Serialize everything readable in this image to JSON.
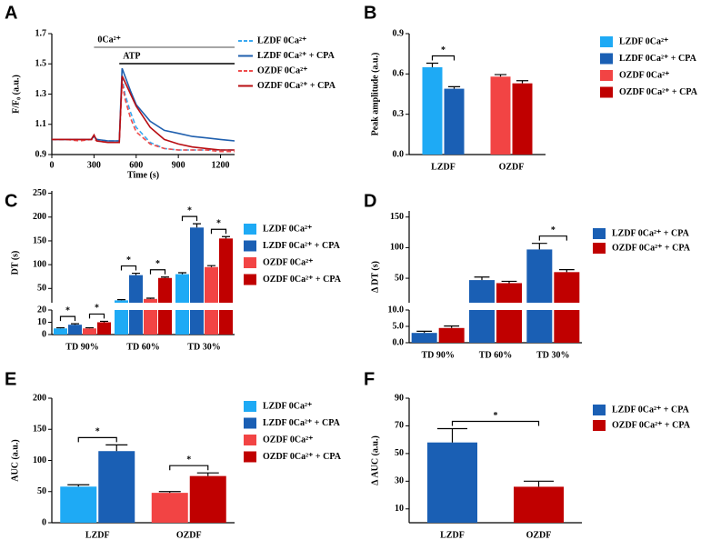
{
  "chart_data": [
    {
      "type": "line",
      "label": "A",
      "xlabel": "Time (s)",
      "ylabel": "F/F₀ (a.u.)",
      "x": [
        0,
        100,
        200,
        280,
        300,
        320,
        400,
        480,
        500,
        520,
        560,
        600,
        700,
        800,
        900,
        1000,
        1100,
        1200,
        1300
      ],
      "xlim": [
        0,
        1300
      ],
      "xticks": [
        0,
        300,
        600,
        900,
        1200
      ],
      "ylim": [
        0.9,
        1.7
      ],
      "yticks": [
        0.9,
        1.1,
        1.3,
        1.5,
        1.7
      ],
      "periods": [
        {
          "label": "0Ca²⁺",
          "start": 300,
          "end": 1300,
          "color": "#888888"
        },
        {
          "label": "ATP",
          "start": 480,
          "end": 1300,
          "color": "#000000"
        }
      ],
      "series": [
        {
          "name": "LZDF 0Ca²⁺",
          "color": "#3aa8f0",
          "style": "dashed",
          "values": [
            1.0,
            1.0,
            1.0,
            1.0,
            1.01,
            1.0,
            0.99,
            0.99,
            1.41,
            1.3,
            1.18,
            1.08,
            0.98,
            0.94,
            0.93,
            0.93,
            0.93,
            0.93,
            0.93
          ]
        },
        {
          "name": "LZDF 0Ca²⁺ + CPA",
          "color": "#1f5fae",
          "style": "solid",
          "values": [
            1.0,
            1.0,
            1.0,
            1.0,
            1.02,
            1.0,
            0.99,
            0.99,
            1.47,
            1.42,
            1.32,
            1.23,
            1.12,
            1.06,
            1.04,
            1.02,
            1.01,
            1.0,
            0.99
          ]
        },
        {
          "name": "OZDF 0Ca²⁺",
          "color": "#ee4b4b",
          "style": "dashed",
          "values": [
            1.0,
            1.0,
            0.99,
            1.0,
            1.0,
            0.99,
            0.98,
            0.98,
            1.38,
            1.27,
            1.14,
            1.05,
            0.97,
            0.94,
            0.93,
            0.93,
            0.93,
            0.92,
            0.92
          ]
        },
        {
          "name": "OZDF 0Ca²⁺ + CPA",
          "color": "#b80d12",
          "style": "solid",
          "values": [
            1.0,
            1.0,
            1.0,
            1.0,
            1.03,
            0.99,
            0.98,
            0.98,
            1.42,
            1.38,
            1.3,
            1.22,
            1.08,
            1.0,
            0.97,
            0.95,
            0.94,
            0.93,
            0.93
          ]
        }
      ]
    },
    {
      "type": "bar",
      "label": "B",
      "ylabel": "Peak amplitude (a.u.)",
      "categories": [
        "LZDF",
        "OZDF"
      ],
      "ylim": [
        0,
        0.9
      ],
      "yticks": [
        {
          "value": 0,
          "label": "0.0"
        },
        0.3,
        0.6,
        0.9
      ],
      "series": [
        {
          "name": "LZDF 0Ca²⁺",
          "color": "#1eaaf5",
          "values": [
            0.65,
            null
          ],
          "errors": [
            0.03,
            null
          ]
        },
        {
          "name": "LZDF 0Ca²⁺ + CPA",
          "color": "#1a5fb4",
          "values": [
            0.49,
            null
          ],
          "errors": [
            0.015,
            null
          ]
        },
        {
          "name": "OZDF 0Ca²⁺",
          "color": "#f24444",
          "values": [
            null,
            0.58
          ],
          "errors": [
            null,
            0.015
          ]
        },
        {
          "name": "OZDF 0Ca²⁺ + CPA",
          "color": "#c00000",
          "values": [
            null,
            0.53
          ],
          "errors": [
            null,
            0.02
          ]
        }
      ],
      "significance": [
        {
          "from": [
            0,
            0
          ],
          "to": [
            0,
            1
          ],
          "label": "*"
        }
      ]
    },
    {
      "type": "bar",
      "label": "C",
      "ylabel": "DT (s)",
      "categories": [
        "TD 90%",
        "TD 60%",
        "TD 30%"
      ],
      "ybreak": {
        "lower": [
          0,
          20
        ],
        "upper": [
          20,
          255
        ]
      },
      "yticks": [
        0,
        10,
        20,
        50,
        100,
        150,
        200,
        250
      ],
      "series": [
        {
          "name": "LZDF 0Ca²⁺",
          "color": "#1eaaf5",
          "values": [
            5,
            25,
            80
          ],
          "errors": [
            0.5,
            1.5,
            3
          ]
        },
        {
          "name": "LZDF 0Ca²⁺ + CPA",
          "color": "#1a5fb4",
          "values": [
            8,
            78,
            178
          ],
          "errors": [
            0.8,
            4,
            8
          ]
        },
        {
          "name": "OZDF 0Ca²⁺",
          "color": "#f24444",
          "values": [
            5,
            28,
            95
          ],
          "errors": [
            0.5,
            1.5,
            3
          ]
        },
        {
          "name": "OZDF 0Ca²⁺ + CPA",
          "color": "#c00000",
          "values": [
            10,
            72,
            155
          ],
          "errors": [
            0.8,
            2,
            4
          ]
        }
      ],
      "significance": [
        {
          "from": [
            0,
            0
          ],
          "to": [
            0,
            1
          ],
          "label": "*"
        },
        {
          "from": [
            0,
            2
          ],
          "to": [
            0,
            3
          ],
          "label": "*"
        },
        {
          "from": [
            1,
            0
          ],
          "to": [
            1,
            1
          ],
          "label": "*"
        },
        {
          "from": [
            1,
            2
          ],
          "to": [
            1,
            3
          ],
          "label": "*"
        },
        {
          "from": [
            2,
            0
          ],
          "to": [
            2,
            1
          ],
          "label": "*"
        },
        {
          "from": [
            2,
            2
          ],
          "to": [
            2,
            3
          ],
          "label": "*"
        }
      ]
    },
    {
      "type": "bar",
      "label": "D",
      "ylabel": "Δ DT (s)",
      "categories": [
        "TD 90%",
        "TD 60%",
        "TD 30%"
      ],
      "ybreak": {
        "lower": [
          0,
          10
        ],
        "upper": [
          10,
          160
        ]
      },
      "yticks": [
        {
          "value": 0,
          "label": "0.0"
        },
        {
          "value": 5,
          "label": "5.0"
        },
        {
          "value": 10,
          "label": "10.0"
        },
        50,
        100,
        150
      ],
      "series": [
        {
          "name": "LZDF 0Ca²⁺ + CPA",
          "color": "#1a5fb4",
          "values": [
            3,
            47,
            97
          ],
          "errors": [
            0.5,
            5,
            10
          ]
        },
        {
          "name": "OZDF 0Ca²⁺ + CPA",
          "color": "#c00000",
          "values": [
            4.5,
            42,
            60
          ],
          "errors": [
            0.6,
            3,
            4
          ]
        }
      ],
      "significance": [
        {
          "from": [
            2,
            0
          ],
          "to": [
            2,
            1
          ],
          "label": "*"
        }
      ]
    },
    {
      "type": "bar",
      "label": "E",
      "ylabel": "AUC (a.u.)",
      "categories": [
        "LZDF",
        "OZDF"
      ],
      "ylim": [
        0,
        200
      ],
      "yticks": [
        0,
        50,
        100,
        150,
        200
      ],
      "series": [
        {
          "name": "LZDF 0Ca²⁺",
          "color": "#1eaaf5",
          "values": [
            58,
            null
          ],
          "errors": [
            3,
            null
          ]
        },
        {
          "name": "LZDF 0Ca²⁺ + CPA",
          "color": "#1a5fb4",
          "values": [
            115,
            null
          ],
          "errors": [
            10,
            null
          ]
        },
        {
          "name": "OZDF 0Ca²⁺",
          "color": "#f24444",
          "values": [
            null,
            48
          ],
          "errors": [
            null,
            2
          ]
        },
        {
          "name": "OZDF 0Ca²⁺ + CPA",
          "color": "#c00000",
          "values": [
            null,
            75
          ],
          "errors": [
            null,
            5
          ]
        }
      ],
      "significance": [
        {
          "from": [
            0,
            0
          ],
          "to": [
            0,
            1
          ],
          "label": "*"
        },
        {
          "from": [
            1,
            2
          ],
          "to": [
            1,
            3
          ],
          "label": "*"
        }
      ]
    },
    {
      "type": "bar",
      "label": "F",
      "ylabel": "Δ AUC (a.u.)",
      "categories": [
        "LZDF",
        "OZDF"
      ],
      "ylim": [
        0,
        90
      ],
      "yticks": [
        10,
        30,
        50,
        70,
        90
      ],
      "series": [
        {
          "name": "LZDF 0Ca²⁺ + CPA",
          "color": "#1a5fb4",
          "values": [
            58,
            null
          ],
          "errors": [
            10,
            null
          ]
        },
        {
          "name": "OZDF 0Ca²⁺ + CPA",
          "color": "#c00000",
          "values": [
            null,
            26
          ],
          "errors": [
            null,
            4
          ]
        }
      ],
      "significance": [
        {
          "from": [
            0,
            0
          ],
          "to": [
            1,
            1
          ],
          "label": "*"
        }
      ]
    }
  ]
}
